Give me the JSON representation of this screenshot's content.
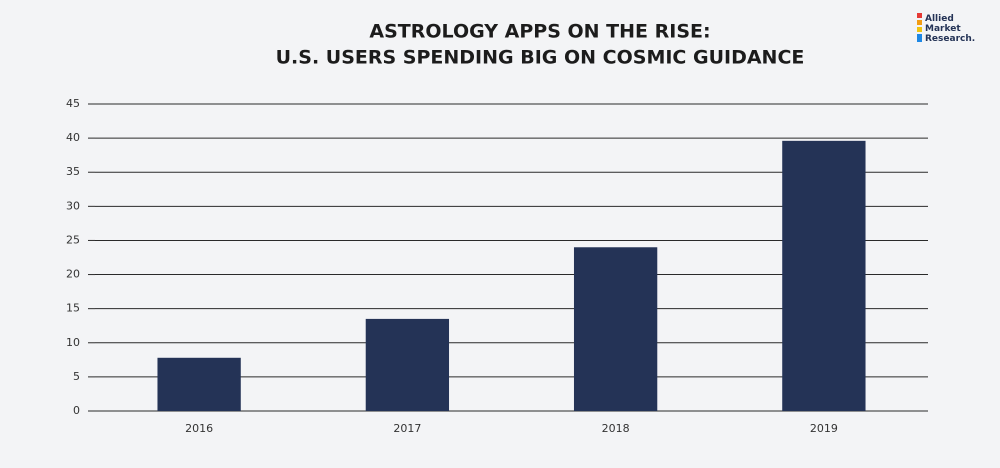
{
  "logo": [
    "Allied",
    "Market",
    "Research."
  ],
  "chart_data": {
    "type": "bar",
    "title": [
      "ASTROLOGY APPS ON THE RISE:",
      "U.S. USERS SPENDING BIG ON COSMIC GUIDANCE"
    ],
    "categories": [
      "2016",
      "2017",
      "2018",
      "2019"
    ],
    "values": [
      7.8,
      13.5,
      24.0,
      39.6
    ],
    "color": "#243356",
    "ylim": [
      0,
      45
    ],
    "yticks": [
      0,
      5,
      10,
      15,
      20,
      25,
      30,
      35,
      40,
      45
    ],
    "grid": true
  }
}
